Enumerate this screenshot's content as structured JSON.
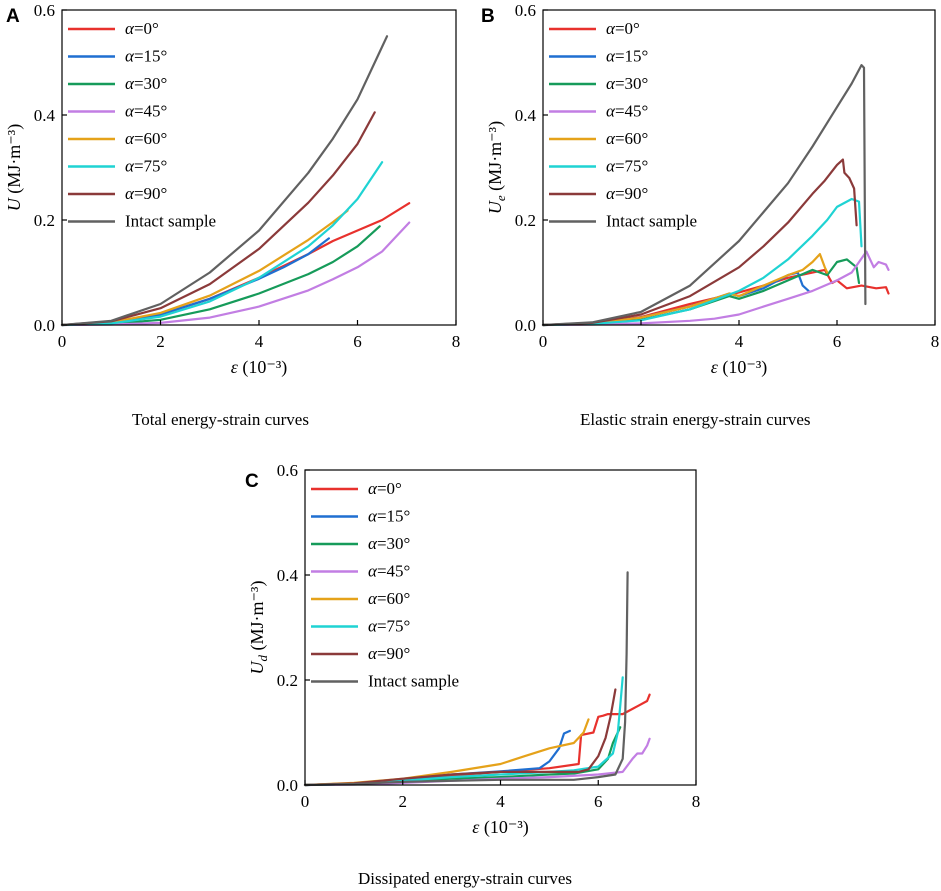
{
  "figure": {
    "captions": {
      "A": "Total energy-strain curves",
      "B": "Elastic strain energy-strain curves",
      "C": "Dissipated energy-strain curves"
    }
  },
  "series_styles": [
    {
      "name": "α=0°",
      "color": "#e8312d"
    },
    {
      "name": "α=15°",
      "color": "#1f6fd1"
    },
    {
      "name": "α=30°",
      "color": "#169b5a"
    },
    {
      "name": "α=45°",
      "color": "#c27ee3"
    },
    {
      "name": "α=60°",
      "color": "#e5a21a"
    },
    {
      "name": "α=75°",
      "color": "#1fd3d3"
    },
    {
      "name": "α=90°",
      "color": "#8b3a3a"
    },
    {
      "name": "Intact sample",
      "color": "#616161"
    }
  ],
  "chart_data": [
    {
      "panel": "A",
      "type": "line",
      "title": "",
      "xlabel_symbol": "ε",
      "xlabel_unit": "(10⁻³)",
      "ylabel_symbol": "U",
      "ylabel_sub": "",
      "ylabel_unit": "(MJ·m⁻³)",
      "xlim": [
        0,
        8
      ],
      "ylim": [
        0,
        0.6
      ],
      "xticks": [
        "0",
        "2",
        "4",
        "6",
        "8"
      ],
      "yticks": [
        "0.0",
        "0.2",
        "0.4",
        "0.6"
      ],
      "legend": "top-left",
      "series": [
        {
          "name": "α=0°",
          "x": [
            0,
            1,
            2,
            3,
            4,
            5,
            5.5,
            6,
            6.5,
            7.05
          ],
          "y": [
            0,
            0.004,
            0.02,
            0.05,
            0.09,
            0.135,
            0.16,
            0.18,
            0.2,
            0.232
          ]
        },
        {
          "name": "α=15°",
          "x": [
            0,
            1,
            2,
            3,
            4,
            4.5,
            5,
            5.42
          ],
          "y": [
            0,
            0.004,
            0.02,
            0.05,
            0.088,
            0.11,
            0.135,
            0.165
          ]
        },
        {
          "name": "α=30°",
          "x": [
            0,
            1,
            2,
            3,
            4,
            5,
            5.5,
            6,
            6.45
          ],
          "y": [
            0,
            0.002,
            0.01,
            0.03,
            0.06,
            0.097,
            0.12,
            0.15,
            0.188
          ]
        },
        {
          "name": "α=45°",
          "x": [
            0,
            1,
            2,
            3,
            4,
            5,
            5.5,
            6,
            6.5,
            7.05
          ],
          "y": [
            0,
            0.001,
            0.004,
            0.014,
            0.035,
            0.066,
            0.087,
            0.11,
            0.14,
            0.195
          ]
        },
        {
          "name": "α=60°",
          "x": [
            0,
            1,
            2,
            3,
            4,
            5,
            5.5,
            5.8
          ],
          "y": [
            0,
            0.005,
            0.023,
            0.056,
            0.103,
            0.162,
            0.196,
            0.218
          ]
        },
        {
          "name": "α=75°",
          "x": [
            0,
            1,
            2,
            3,
            4,
            5,
            5.5,
            6,
            6.5
          ],
          "y": [
            0,
            0.003,
            0.016,
            0.045,
            0.09,
            0.15,
            0.19,
            0.24,
            0.31
          ]
        },
        {
          "name": "α=90°",
          "x": [
            0,
            1,
            2,
            3,
            4,
            5,
            5.5,
            6,
            6.35
          ],
          "y": [
            0,
            0.007,
            0.032,
            0.078,
            0.145,
            0.233,
            0.285,
            0.345,
            0.405
          ]
        },
        {
          "name": "Intact sample",
          "x": [
            0,
            1,
            2,
            3,
            4,
            5,
            5.5,
            6,
            6.6
          ],
          "y": [
            0,
            0.008,
            0.04,
            0.1,
            0.18,
            0.29,
            0.355,
            0.43,
            0.55
          ]
        }
      ]
    },
    {
      "panel": "B",
      "type": "line",
      "title": "",
      "xlabel_symbol": "ε",
      "xlabel_unit": "(10⁻³)",
      "ylabel_symbol": "U",
      "ylabel_sub": "e",
      "ylabel_unit": "(MJ·m⁻³)",
      "xlim": [
        0,
        8
      ],
      "ylim": [
        0,
        0.6
      ],
      "xticks": [
        "0",
        "2",
        "4",
        "6",
        "8"
      ],
      "yticks": [
        "0.0",
        "0.2",
        "0.4",
        "0.6"
      ],
      "legend": "top-left",
      "series": [
        {
          "name": "α=0°",
          "x": [
            0,
            1,
            2,
            3,
            4,
            4.5,
            5,
            5.5,
            5.75,
            5.9,
            6.0,
            6.2,
            6.5,
            6.8,
            7.0,
            7.05
          ],
          "y": [
            0,
            0.003,
            0.015,
            0.04,
            0.062,
            0.075,
            0.09,
            0.1,
            0.105,
            0.08,
            0.085,
            0.07,
            0.075,
            0.07,
            0.072,
            0.06
          ]
        },
        {
          "name": "α=15°",
          "x": [
            0,
            1,
            2,
            3,
            3.8,
            4,
            4.5,
            5,
            5.2,
            5.3,
            5.42
          ],
          "y": [
            0,
            0.003,
            0.014,
            0.035,
            0.06,
            0.055,
            0.07,
            0.095,
            0.1,
            0.075,
            0.065
          ]
        },
        {
          "name": "α=30°",
          "x": [
            0,
            1,
            2,
            3,
            3.8,
            4,
            4.5,
            5,
            5.5,
            5.8,
            6.0,
            6.2,
            6.4,
            6.45
          ],
          "y": [
            0,
            0.002,
            0.01,
            0.03,
            0.055,
            0.05,
            0.065,
            0.085,
            0.105,
            0.095,
            0.12,
            0.125,
            0.11,
            0.08
          ]
        },
        {
          "name": "α=45°",
          "x": [
            0,
            1,
            2,
            3,
            3.5,
            4,
            4.5,
            5,
            5.5,
            6,
            6.3,
            6.6,
            6.75,
            6.85,
            7.0,
            7.05
          ],
          "y": [
            0,
            0.001,
            0.003,
            0.008,
            0.012,
            0.02,
            0.035,
            0.05,
            0.065,
            0.085,
            0.1,
            0.14,
            0.11,
            0.12,
            0.115,
            0.105
          ]
        },
        {
          "name": "α=60°",
          "x": [
            0,
            1,
            2,
            3,
            3.8,
            4,
            4.5,
            5,
            5.3,
            5.5,
            5.65,
            5.75,
            5.8
          ],
          "y": [
            0,
            0.003,
            0.014,
            0.035,
            0.06,
            0.055,
            0.075,
            0.095,
            0.105,
            0.12,
            0.135,
            0.11,
            0.1
          ]
        },
        {
          "name": "α=75°",
          "x": [
            0,
            1,
            2,
            3,
            4,
            4.5,
            5,
            5.5,
            5.8,
            6.0,
            6.2,
            6.3,
            6.45,
            6.5
          ],
          "y": [
            0,
            0.002,
            0.009,
            0.03,
            0.065,
            0.09,
            0.125,
            0.17,
            0.2,
            0.225,
            0.235,
            0.24,
            0.235,
            0.15
          ]
        },
        {
          "name": "α=90°",
          "x": [
            0,
            1,
            2,
            3,
            4,
            4.5,
            5,
            5.5,
            5.75,
            6.0,
            6.12,
            6.15,
            6.25,
            6.35,
            6.4
          ],
          "y": [
            0,
            0.004,
            0.02,
            0.055,
            0.11,
            0.15,
            0.195,
            0.25,
            0.275,
            0.305,
            0.315,
            0.29,
            0.28,
            0.26,
            0.19
          ]
        },
        {
          "name": "Intact sample",
          "x": [
            0,
            1,
            2,
            3,
            4,
            5,
            5.5,
            6,
            6.3,
            6.5,
            6.55,
            6.58
          ],
          "y": [
            0,
            0.005,
            0.025,
            0.075,
            0.16,
            0.27,
            0.34,
            0.415,
            0.46,
            0.495,
            0.49,
            0.04
          ]
        }
      ]
    },
    {
      "panel": "C",
      "type": "line",
      "title": "",
      "xlabel_symbol": "ε",
      "xlabel_unit": "(10⁻³)",
      "ylabel_symbol": "U",
      "ylabel_sub": "d",
      "ylabel_unit": "(MJ·m⁻³)",
      "xlim": [
        0,
        8
      ],
      "ylim": [
        0,
        0.6
      ],
      "xticks": [
        "0",
        "2",
        "4",
        "6",
        "8"
      ],
      "yticks": [
        "0.0",
        "0.2",
        "0.4",
        "0.6"
      ],
      "legend": "top-left",
      "series": [
        {
          "name": "α=0°",
          "x": [
            0,
            1,
            2,
            3,
            4,
            5,
            5.6,
            5.65,
            5.9,
            6.0,
            6.1,
            6.2,
            6.5,
            6.8,
            7.0,
            7.05
          ],
          "y": [
            0,
            0.003,
            0.01,
            0.018,
            0.025,
            0.032,
            0.04,
            0.095,
            0.1,
            0.13,
            0.132,
            0.135,
            0.135,
            0.15,
            0.16,
            0.172
          ]
        },
        {
          "name": "α=15°",
          "x": [
            0,
            1,
            2,
            3,
            4,
            4.8,
            5.0,
            5.2,
            5.3,
            5.42
          ],
          "y": [
            0,
            0.003,
            0.01,
            0.02,
            0.026,
            0.032,
            0.045,
            0.07,
            0.098,
            0.103
          ]
        },
        {
          "name": "α=30°",
          "x": [
            0,
            1,
            2,
            3,
            4,
            5,
            5.5,
            6.0,
            6.2,
            6.3,
            6.45
          ],
          "y": [
            0,
            0.002,
            0.007,
            0.012,
            0.015,
            0.02,
            0.022,
            0.03,
            0.05,
            0.08,
            0.11
          ]
        },
        {
          "name": "α=45°",
          "x": [
            0,
            1,
            2,
            3,
            4,
            5,
            6,
            6.5,
            6.7,
            6.8,
            6.9,
            7.0,
            7.05
          ],
          "y": [
            0,
            0.001,
            0.004,
            0.008,
            0.012,
            0.015,
            0.02,
            0.025,
            0.05,
            0.06,
            0.06,
            0.075,
            0.088
          ]
        },
        {
          "name": "α=60°",
          "x": [
            0,
            1,
            2,
            3,
            4,
            4.5,
            5,
            5.5,
            5.7,
            5.8
          ],
          "y": [
            0,
            0.004,
            0.012,
            0.025,
            0.04,
            0.055,
            0.07,
            0.08,
            0.1,
            0.125
          ]
        },
        {
          "name": "α=75°",
          "x": [
            0,
            1,
            2,
            3,
            4,
            5,
            5.5,
            6.0,
            6.3,
            6.4,
            6.45,
            6.5
          ],
          "y": [
            0,
            0.002,
            0.008,
            0.015,
            0.02,
            0.025,
            0.028,
            0.035,
            0.06,
            0.1,
            0.15,
            0.205
          ]
        },
        {
          "name": "α=90°",
          "x": [
            0,
            1,
            2,
            3,
            4,
            5,
            5.6,
            5.8,
            6.0,
            6.15,
            6.25,
            6.35
          ],
          "y": [
            0,
            0.003,
            0.012,
            0.02,
            0.025,
            0.025,
            0.025,
            0.03,
            0.055,
            0.09,
            0.13,
            0.182
          ]
        },
        {
          "name": "Intact sample",
          "x": [
            0,
            1,
            2,
            3,
            4,
            5,
            5.5,
            6,
            6.35,
            6.5,
            6.55,
            6.58,
            6.6
          ],
          "y": [
            0,
            0.002,
            0.006,
            0.008,
            0.01,
            0.01,
            0.01,
            0.015,
            0.02,
            0.05,
            0.12,
            0.25,
            0.405
          ]
        }
      ]
    }
  ]
}
